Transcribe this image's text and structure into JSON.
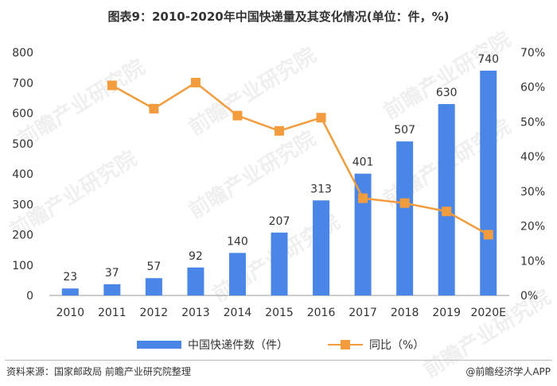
{
  "title": "图表9：2010-2020年中国快递量及其变化情况(单位：件，%)",
  "colors": {
    "bar": "#4a86e8",
    "line": "#f39c3d",
    "axis": "#555555",
    "grid": "#e5e5e5"
  },
  "chart_data": {
    "type": "bar",
    "categories": [
      "2010",
      "2011",
      "2012",
      "2013",
      "2014",
      "2015",
      "2016",
      "2017",
      "2018",
      "2019",
      "2020E"
    ],
    "series": [
      {
        "name": "中国快递件数（件）",
        "type": "bar",
        "axis": "left",
        "values": [
          23,
          37,
          57,
          92,
          140,
          207,
          313,
          401,
          507,
          630,
          740
        ]
      },
      {
        "name": "同比（%）",
        "type": "line",
        "axis": "right",
        "values": [
          null,
          60.5,
          53.8,
          61.3,
          51.8,
          47.4,
          51.2,
          28.0,
          26.6,
          24.2,
          17.5
        ]
      }
    ],
    "y_left": {
      "min": 0,
      "max": 800,
      "ticks": [
        "0",
        "100",
        "200",
        "300",
        "400",
        "500",
        "600",
        "700",
        "800"
      ]
    },
    "y_right": {
      "min": 0,
      "max": 70,
      "ticks": [
        "0%",
        "10%",
        "20%",
        "30%",
        "40%",
        "50%",
        "60%",
        "70%"
      ]
    },
    "bar_labels": [
      "23",
      "37",
      "57",
      "92",
      "140",
      "207",
      "313",
      "401",
      "507",
      "630",
      "740"
    ],
    "legend_position": "bottom",
    "grid": false
  },
  "legend": {
    "bar_label": "中国快递件数（件）",
    "line_label": "同比（%）"
  },
  "footer": {
    "source": "资料来源：国家邮政局 前瞻产业研究院整理",
    "brand": "@前瞻经济学人APP"
  },
  "watermark": "前瞻产业研究院"
}
